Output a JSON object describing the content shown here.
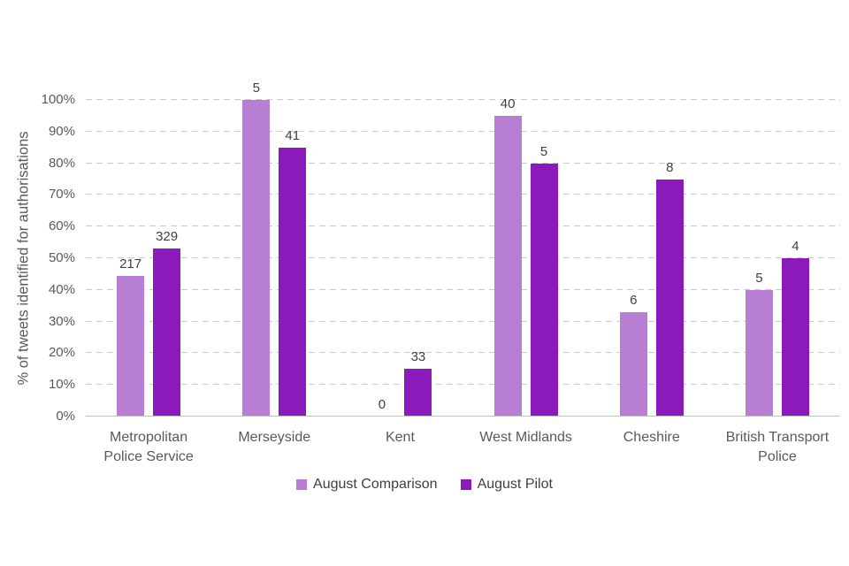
{
  "chart_data": {
    "type": "bar",
    "title": "",
    "ylabel": "% of tweets identified for authorisations",
    "xlabel": "",
    "ylim": [
      0,
      100
    ],
    "yticks": [
      "0%",
      "10%",
      "20%",
      "30%",
      "40%",
      "50%",
      "60%",
      "70%",
      "80%",
      "90%",
      "100%"
    ],
    "grid": "horizontal-dashed",
    "legend_position": "bottom-center",
    "categories": [
      "Metropolitan Police Service",
      "Merseyside",
      "Kent",
      "West Midlands",
      "Cheshire",
      "British Transport Police"
    ],
    "series": [
      {
        "name": "August Comparison",
        "color": "#b87ed3",
        "values_pct": [
          44.5,
          100,
          0,
          95,
          33,
          40
        ],
        "bar_labels": [
          "217",
          "5",
          "0",
          "40",
          "6",
          "5"
        ]
      },
      {
        "name": "August Pilot",
        "color": "#8a1aba",
        "values_pct": [
          53,
          85,
          15,
          80,
          75,
          50
        ],
        "bar_labels": [
          "329",
          "41",
          "33",
          "5",
          "8",
          "4"
        ]
      }
    ]
  },
  "styles": {
    "background": "#ffffff",
    "gridline_color": "#c9c9c9",
    "axis_line_color": "#bfbfbf",
    "tick_label_color": "#595959",
    "data_label_color": "#404040",
    "legend_text_color": "#404040"
  }
}
